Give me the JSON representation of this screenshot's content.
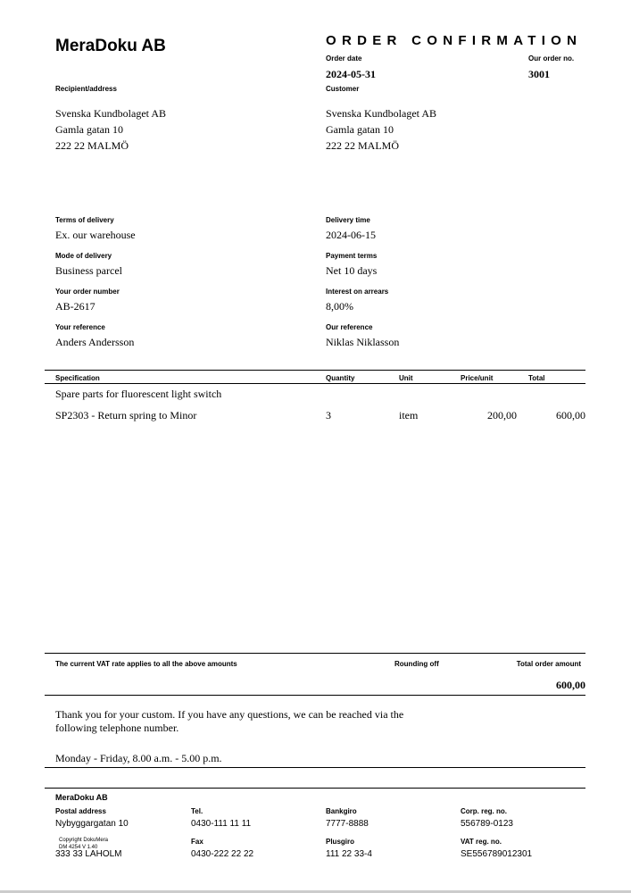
{
  "company": "MeraDoku AB",
  "title": "ORDER CONFIRMATION",
  "order_date": {
    "label": "Order date",
    "value": "2024-05-31"
  },
  "order_no": {
    "label": "Our order no.",
    "value": "3001"
  },
  "recipient": {
    "label": "Recipient/address",
    "lines": [
      "Svenska Kundbolaget AB",
      "Gamla gatan 10",
      "222 22 MALMÖ"
    ]
  },
  "customer": {
    "label": "Customer",
    "lines": [
      "Svenska Kundbolaget AB",
      "Gamla gatan 10",
      "222 22 MALMÖ"
    ]
  },
  "fields": [
    {
      "label": "Terms of delivery",
      "value": "Ex. our warehouse"
    },
    {
      "label": "Delivery time",
      "value": "2024-06-15"
    },
    {
      "label": "Mode of delivery",
      "value": "Business parcel"
    },
    {
      "label": "Payment terms",
      "value": "Net 10 days"
    },
    {
      "label": "Your order number",
      "value": "AB-2617"
    },
    {
      "label": "Interest on arrears",
      "value": "8,00%"
    },
    {
      "label": "Your reference",
      "value": "Anders Andersson"
    },
    {
      "label": "Our reference",
      "value": "Niklas Niklasson"
    }
  ],
  "table": {
    "headers": [
      "Specification",
      "Quantity",
      "Unit",
      "Price/unit",
      "Total"
    ],
    "group": "Spare parts for fluorescent light switch",
    "rows": [
      {
        "spec": "SP2303 - Return spring to Minor",
        "qty": "3",
        "unit": "item",
        "price": "200,00",
        "total": "600,00"
      }
    ]
  },
  "summary": {
    "vat_note": "The current VAT rate applies to all the above amounts",
    "rounding_label": "Rounding off",
    "total_label": "Total order amount",
    "total_value": "600,00"
  },
  "message": {
    "lines": [
      "Thank you for your custom. If you have any questions, we can be reached via the",
      "following telephone number."
    ],
    "hours": "Monday - Friday, 8.00 a.m. - 5.00 p.m."
  },
  "footer": {
    "company": "MeraDoku AB",
    "postal_label": "Postal address",
    "postal_1": "Nybyggargatan 10",
    "postal_2": "333 33 LAHOLM",
    "tel_label": "Tel.",
    "tel": "0430-111 11 11",
    "fax_label": "Fax",
    "fax": "0430-222 22 22",
    "bankgiro_label": "Bankgiro",
    "bankgiro": "7777-8888",
    "plusgiro_label": "Plusgiro",
    "plusgiro": "111 22 33-4",
    "corp_label": "Corp. reg. no.",
    "corp": "556789-0123",
    "vat_label": "VAT reg. no.",
    "vat": "SE556789012301",
    "copyright": "Copyright DokuMera",
    "version": "DM 4254 V 1.40"
  }
}
